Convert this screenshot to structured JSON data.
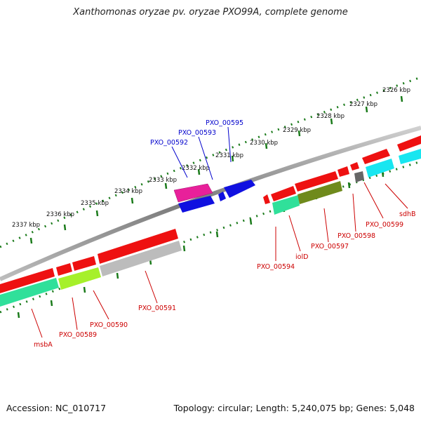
{
  "title": "Xanthomonas oryzae pv. oryzae PXO99A, complete genome",
  "footer": {
    "accession": "Accession: NC_010717",
    "summary": "Topology: circular; Length: 5,240,075 bp; Genes: 5,048"
  },
  "ruler_labels": [
    "2326 kbp",
    "2327 kbp",
    "2328 kbp",
    "2329 kbp",
    "2330 kbp",
    "2331 kbp",
    "2332 kbp",
    "2333 kbp",
    "2334 kbp",
    "2335 kbp",
    "2336 kbp",
    "2337 kbp"
  ],
  "gene_labels": [
    {
      "text": "PXO_00595",
      "color": "#0000cc"
    },
    {
      "text": "PXO_00593",
      "color": "#0000cc"
    },
    {
      "text": "PXO_00592",
      "color": "#0000cc"
    },
    {
      "text": "sdhB",
      "color": "#cc0000"
    },
    {
      "text": "PXO_00599",
      "color": "#cc0000"
    },
    {
      "text": "PXO_00598",
      "color": "#cc0000"
    },
    {
      "text": "PXO_00597",
      "color": "#cc0000"
    },
    {
      "text": "iolD",
      "color": "#cc0000"
    },
    {
      "text": "PXO_00594",
      "color": "#cc0000"
    },
    {
      "text": "PXO_00591",
      "color": "#cc0000"
    },
    {
      "text": "PXO_00590",
      "color": "#cc0000"
    },
    {
      "text": "PXO_00589",
      "color": "#cc0000"
    },
    {
      "text": "msbA",
      "color": "#cc0000"
    }
  ]
}
